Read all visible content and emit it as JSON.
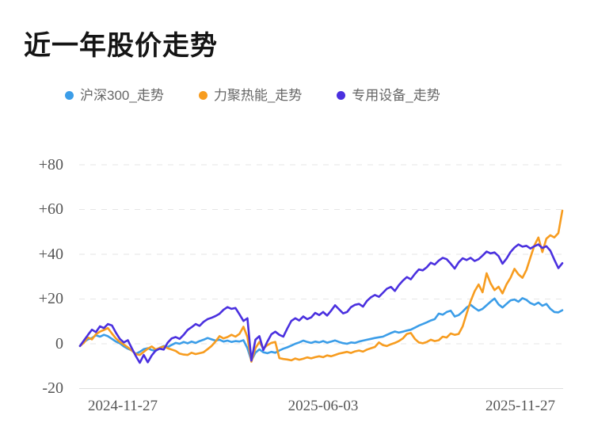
{
  "header": {
    "title": "近一年股价走势"
  },
  "yaxis": {
    "ticks": [
      "+80",
      "+60",
      "+40",
      "+20",
      "0",
      "-20"
    ]
  },
  "xaxis": {
    "ticks": [
      "2024-11-27",
      "2025-06-03",
      "2025-11-27"
    ]
  },
  "chart_data": {
    "type": "line",
    "title": "近一年股价走势",
    "xlabel": "",
    "ylabel": "",
    "x_tick_labels": [
      "2024-11-27",
      "2025-06-03",
      "2025-11-27"
    ],
    "ylim": [
      -20,
      80
    ],
    "y_tick_values": [
      80,
      60,
      40,
      20,
      0,
      -20
    ],
    "grid": "horizontal-dashed",
    "legend_position": "top",
    "colors": {
      "background": "#ffffff",
      "gridline": "#e6e6e6",
      "baseline": "#dedede"
    },
    "series": [
      {
        "name": "沪深300_走势",
        "color": "#3B9DE8",
        "values": [
          -1.0,
          0.8,
          2.0,
          2.6,
          3.8,
          3.2,
          4.0,
          3.4,
          2.2,
          1.0,
          0.2,
          -1.2,
          -2.2,
          -3.0,
          -4.5,
          -3.6,
          -2.4,
          -2.0,
          -2.8,
          -3.2,
          -1.8,
          -1.0,
          -1.5,
          -0.5,
          0.4,
          0.0,
          0.8,
          0.2,
          1.0,
          0.4,
          1.2,
          1.8,
          2.6,
          2.0,
          1.4,
          1.8,
          1.0,
          1.4,
          0.8,
          1.2,
          1.0,
          1.6,
          -2.0,
          -7.5,
          -4.0,
          -2.5,
          -3.8,
          -4.2,
          -3.6,
          -4.0,
          -3.0,
          -2.2,
          -1.6,
          -0.8,
          0.0,
          0.6,
          1.4,
          0.8,
          0.4,
          1.0,
          0.6,
          1.2,
          0.5,
          1.0,
          1.5,
          0.8,
          0.3,
          0.0,
          0.6,
          0.4,
          1.0,
          1.4,
          1.8,
          2.2,
          2.6,
          2.9,
          3.2,
          4.0,
          4.8,
          5.5,
          5.0,
          5.4,
          5.9,
          6.3,
          7.2,
          8.1,
          8.8,
          9.6,
          10.4,
          11.0,
          13.5,
          13.0,
          14.2,
          14.8,
          12.2,
          12.8,
          14.4,
          16.2,
          17.4,
          16.0,
          14.8,
          15.6,
          17.2,
          18.8,
          20.2,
          17.6,
          16.2,
          17.8,
          19.4,
          19.8,
          18.8,
          20.4,
          19.6,
          18.2,
          17.4,
          18.4,
          17.0,
          17.8,
          15.6,
          14.2,
          14.0,
          15.0
        ]
      },
      {
        "name": "力聚热能_走势",
        "color": "#F79C1F",
        "values": [
          -1.0,
          0.5,
          2.8,
          2.0,
          4.2,
          5.4,
          6.2,
          7.0,
          4.6,
          2.4,
          0.8,
          -0.4,
          -1.6,
          -3.0,
          -4.6,
          -5.0,
          -3.6,
          -2.2,
          -1.2,
          -2.6,
          -1.8,
          -1.2,
          -2.0,
          -2.6,
          -3.2,
          -4.4,
          -4.8,
          -5.0,
          -4.0,
          -4.6,
          -4.2,
          -3.8,
          -2.4,
          -1.0,
          1.0,
          3.4,
          2.4,
          3.0,
          4.0,
          3.2,
          4.4,
          7.6,
          3.0,
          -8.0,
          -2.0,
          0.8,
          -2.2,
          -0.6,
          0.4,
          0.8,
          -6.4,
          -6.8,
          -7.0,
          -7.4,
          -6.6,
          -7.1,
          -6.7,
          -6.1,
          -6.5,
          -6.0,
          -5.6,
          -6.0,
          -5.2,
          -5.6,
          -5.0,
          -4.4,
          -4.0,
          -3.6,
          -4.1,
          -3.4,
          -3.0,
          -3.5,
          -2.6,
          -2.0,
          -1.4,
          0.6,
          -0.6,
          -1.0,
          -0.2,
          0.4,
          1.2,
          2.4,
          4.4,
          4.8,
          2.2,
          0.6,
          0.2,
          0.8,
          1.8,
          1.2,
          1.6,
          3.2,
          2.8,
          4.6,
          4.0,
          4.4,
          7.8,
          13.5,
          19.0,
          23.5,
          26.5,
          23.0,
          31.5,
          27.0,
          24.0,
          25.5,
          22.5,
          26.5,
          29.5,
          33.5,
          31.0,
          29.5,
          33.0,
          38.5,
          44.0,
          47.5,
          41.0,
          47.0,
          48.5,
          47.5,
          49.5,
          59.5
        ]
      },
      {
        "name": "专用设备_走势",
        "color": "#4A30DF",
        "values": [
          -1.0,
          1.5,
          4.0,
          6.3,
          5.2,
          7.8,
          7.0,
          8.8,
          8.2,
          5.0,
          2.2,
          0.6,
          1.6,
          -2.0,
          -5.5,
          -8.5,
          -5.0,
          -8.3,
          -5.2,
          -3.0,
          -2.2,
          -2.6,
          0.5,
          2.4,
          3.0,
          2.2,
          4.0,
          6.2,
          7.4,
          8.8,
          8.0,
          9.8,
          11.0,
          11.6,
          12.4,
          13.4,
          15.2,
          16.4,
          15.6,
          16.0,
          13.2,
          10.2,
          11.4,
          -7.5,
          1.8,
          3.4,
          -2.8,
          1.0,
          4.2,
          5.4,
          4.0,
          3.2,
          6.8,
          10.2,
          11.4,
          10.4,
          12.2,
          11.0,
          11.8,
          13.8,
          12.8,
          14.2,
          12.6,
          14.8,
          17.2,
          15.4,
          13.6,
          14.2,
          16.4,
          17.4,
          17.8,
          16.6,
          19.2,
          20.8,
          21.8,
          21.0,
          22.8,
          24.6,
          25.4,
          23.6,
          26.2,
          28.2,
          29.8,
          28.8,
          31.2,
          33.2,
          32.8,
          34.2,
          36.2,
          35.4,
          37.2,
          38.4,
          37.8,
          35.8,
          33.6,
          36.4,
          38.2,
          37.4,
          38.4,
          37.0,
          37.8,
          39.4,
          41.2,
          40.4,
          40.8,
          39.2,
          35.8,
          38.0,
          41.0,
          43.0,
          44.4,
          43.4,
          43.8,
          42.6,
          43.6,
          44.4,
          42.8,
          43.6,
          41.6,
          37.6,
          33.8,
          36.0
        ]
      }
    ]
  }
}
